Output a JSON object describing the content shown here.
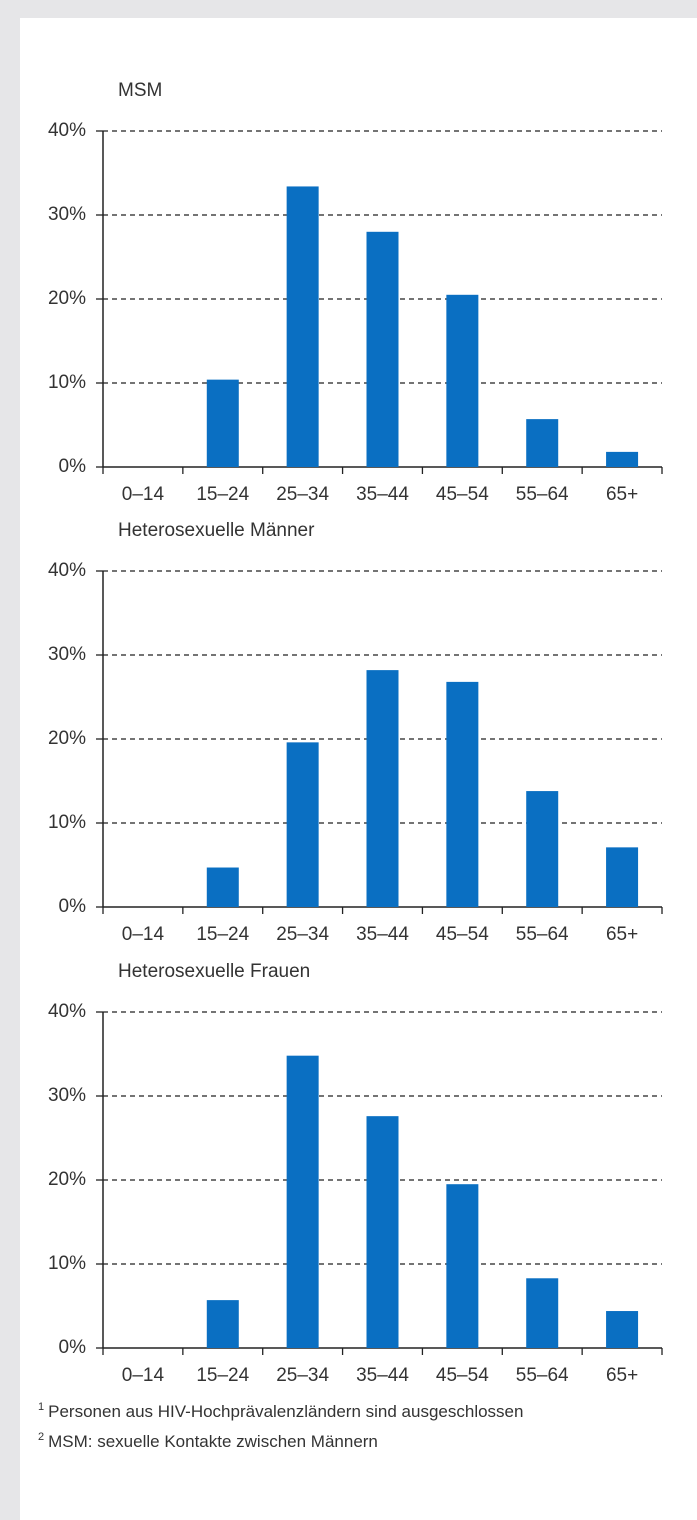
{
  "chart_data": [
    {
      "type": "bar",
      "title": "MSM",
      "color": "#0a6fc2",
      "grid": true,
      "categories": [
        "0–14",
        "15–24",
        "25–34",
        "35–44",
        "45–54",
        "55–64",
        "65+"
      ],
      "values": [
        0,
        10.4,
        33.4,
        28,
        20.5,
        5.7,
        1.8
      ],
      "ylim": [
        0,
        40
      ],
      "yticks": [
        {
          "value": 0,
          "label": "0%"
        },
        {
          "value": 10,
          "label": "10%"
        },
        {
          "value": 20,
          "label": "20%"
        },
        {
          "value": 30,
          "label": "30%"
        },
        {
          "value": 40,
          "label": "40%"
        }
      ]
    },
    {
      "type": "bar",
      "title": "Heterosexuelle Männer",
      "color": "#0a6fc2",
      "grid": true,
      "categories": [
        "0–14",
        "15–24",
        "25–34",
        "35–44",
        "45–54",
        "55–64",
        "65+"
      ],
      "values": [
        0,
        4.7,
        19.6,
        28.2,
        26.8,
        13.8,
        7.1
      ],
      "ylim": [
        0,
        40
      ],
      "yticks": [
        {
          "value": 0,
          "label": "0%"
        },
        {
          "value": 10,
          "label": "10%"
        },
        {
          "value": 20,
          "label": "20%"
        },
        {
          "value": 30,
          "label": "30%"
        },
        {
          "value": 40,
          "label": "40%"
        }
      ]
    },
    {
      "type": "bar",
      "title": "Heterosexuelle Frauen",
      "color": "#0a6fc2",
      "grid": true,
      "categories": [
        "0–14",
        "15–24",
        "25–34",
        "35–44",
        "45–54",
        "55–64",
        "65+"
      ],
      "values": [
        0,
        5.7,
        34.8,
        27.6,
        19.5,
        8.3,
        4.4
      ],
      "ylim": [
        0,
        40
      ],
      "yticks": [
        {
          "value": 0,
          "label": "0%"
        },
        {
          "value": 10,
          "label": "10%"
        },
        {
          "value": 20,
          "label": "20%"
        },
        {
          "value": 30,
          "label": "30%"
        },
        {
          "value": 40,
          "label": "40%"
        }
      ]
    }
  ],
  "footnotes": [
    {
      "mark": "1",
      "text": "Personen aus HIV-Hochprävalenzländern sind ausgeschlossen"
    },
    {
      "mark": "2",
      "text": "MSM: sexuelle Kontakte zwischen Männern"
    }
  ]
}
